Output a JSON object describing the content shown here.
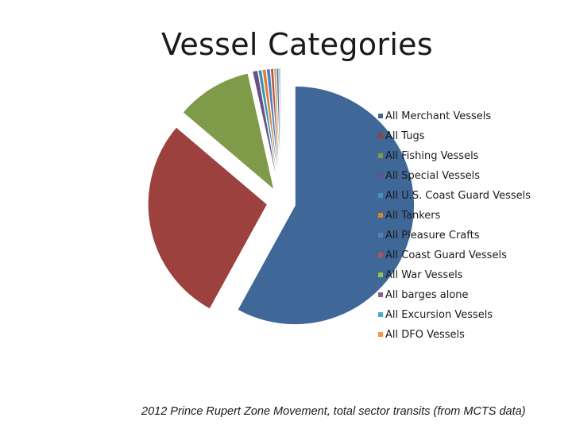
{
  "chart_data": {
    "type": "pie",
    "title": "Vessel Categories",
    "categories": [
      "All Merchant Vessels",
      "All Tugs",
      "All Fishing Vessels",
      "All Special Vessels",
      "All U.S. Coast Guard Vessels",
      "All Tankers",
      "All Pleasure Crafts",
      "All Coast Guard Vessels",
      "All War Vessels",
      "All barges alone",
      "All Excursion Vessels",
      "All DFO Vessels"
    ],
    "values": [
      58.0,
      28.2,
      10.3,
      0.7,
      0.5,
      0.5,
      0.5,
      0.4,
      0.3,
      0.3,
      0.2,
      0.1
    ],
    "unit": "percent of total sector transits (approx.)",
    "colors": [
      "#3f6899",
      "#9c413e",
      "#7f9a48",
      "#695185",
      "#3d96ae",
      "#da8137",
      "#4f81bd",
      "#c0504d",
      "#9bbb59",
      "#8064a2",
      "#4bacc6",
      "#f79646"
    ],
    "exploded": true,
    "legend_position": "right"
  },
  "caption": "2012 Prince Rupert Zone Movement, total sector transits (from MCTS data)"
}
